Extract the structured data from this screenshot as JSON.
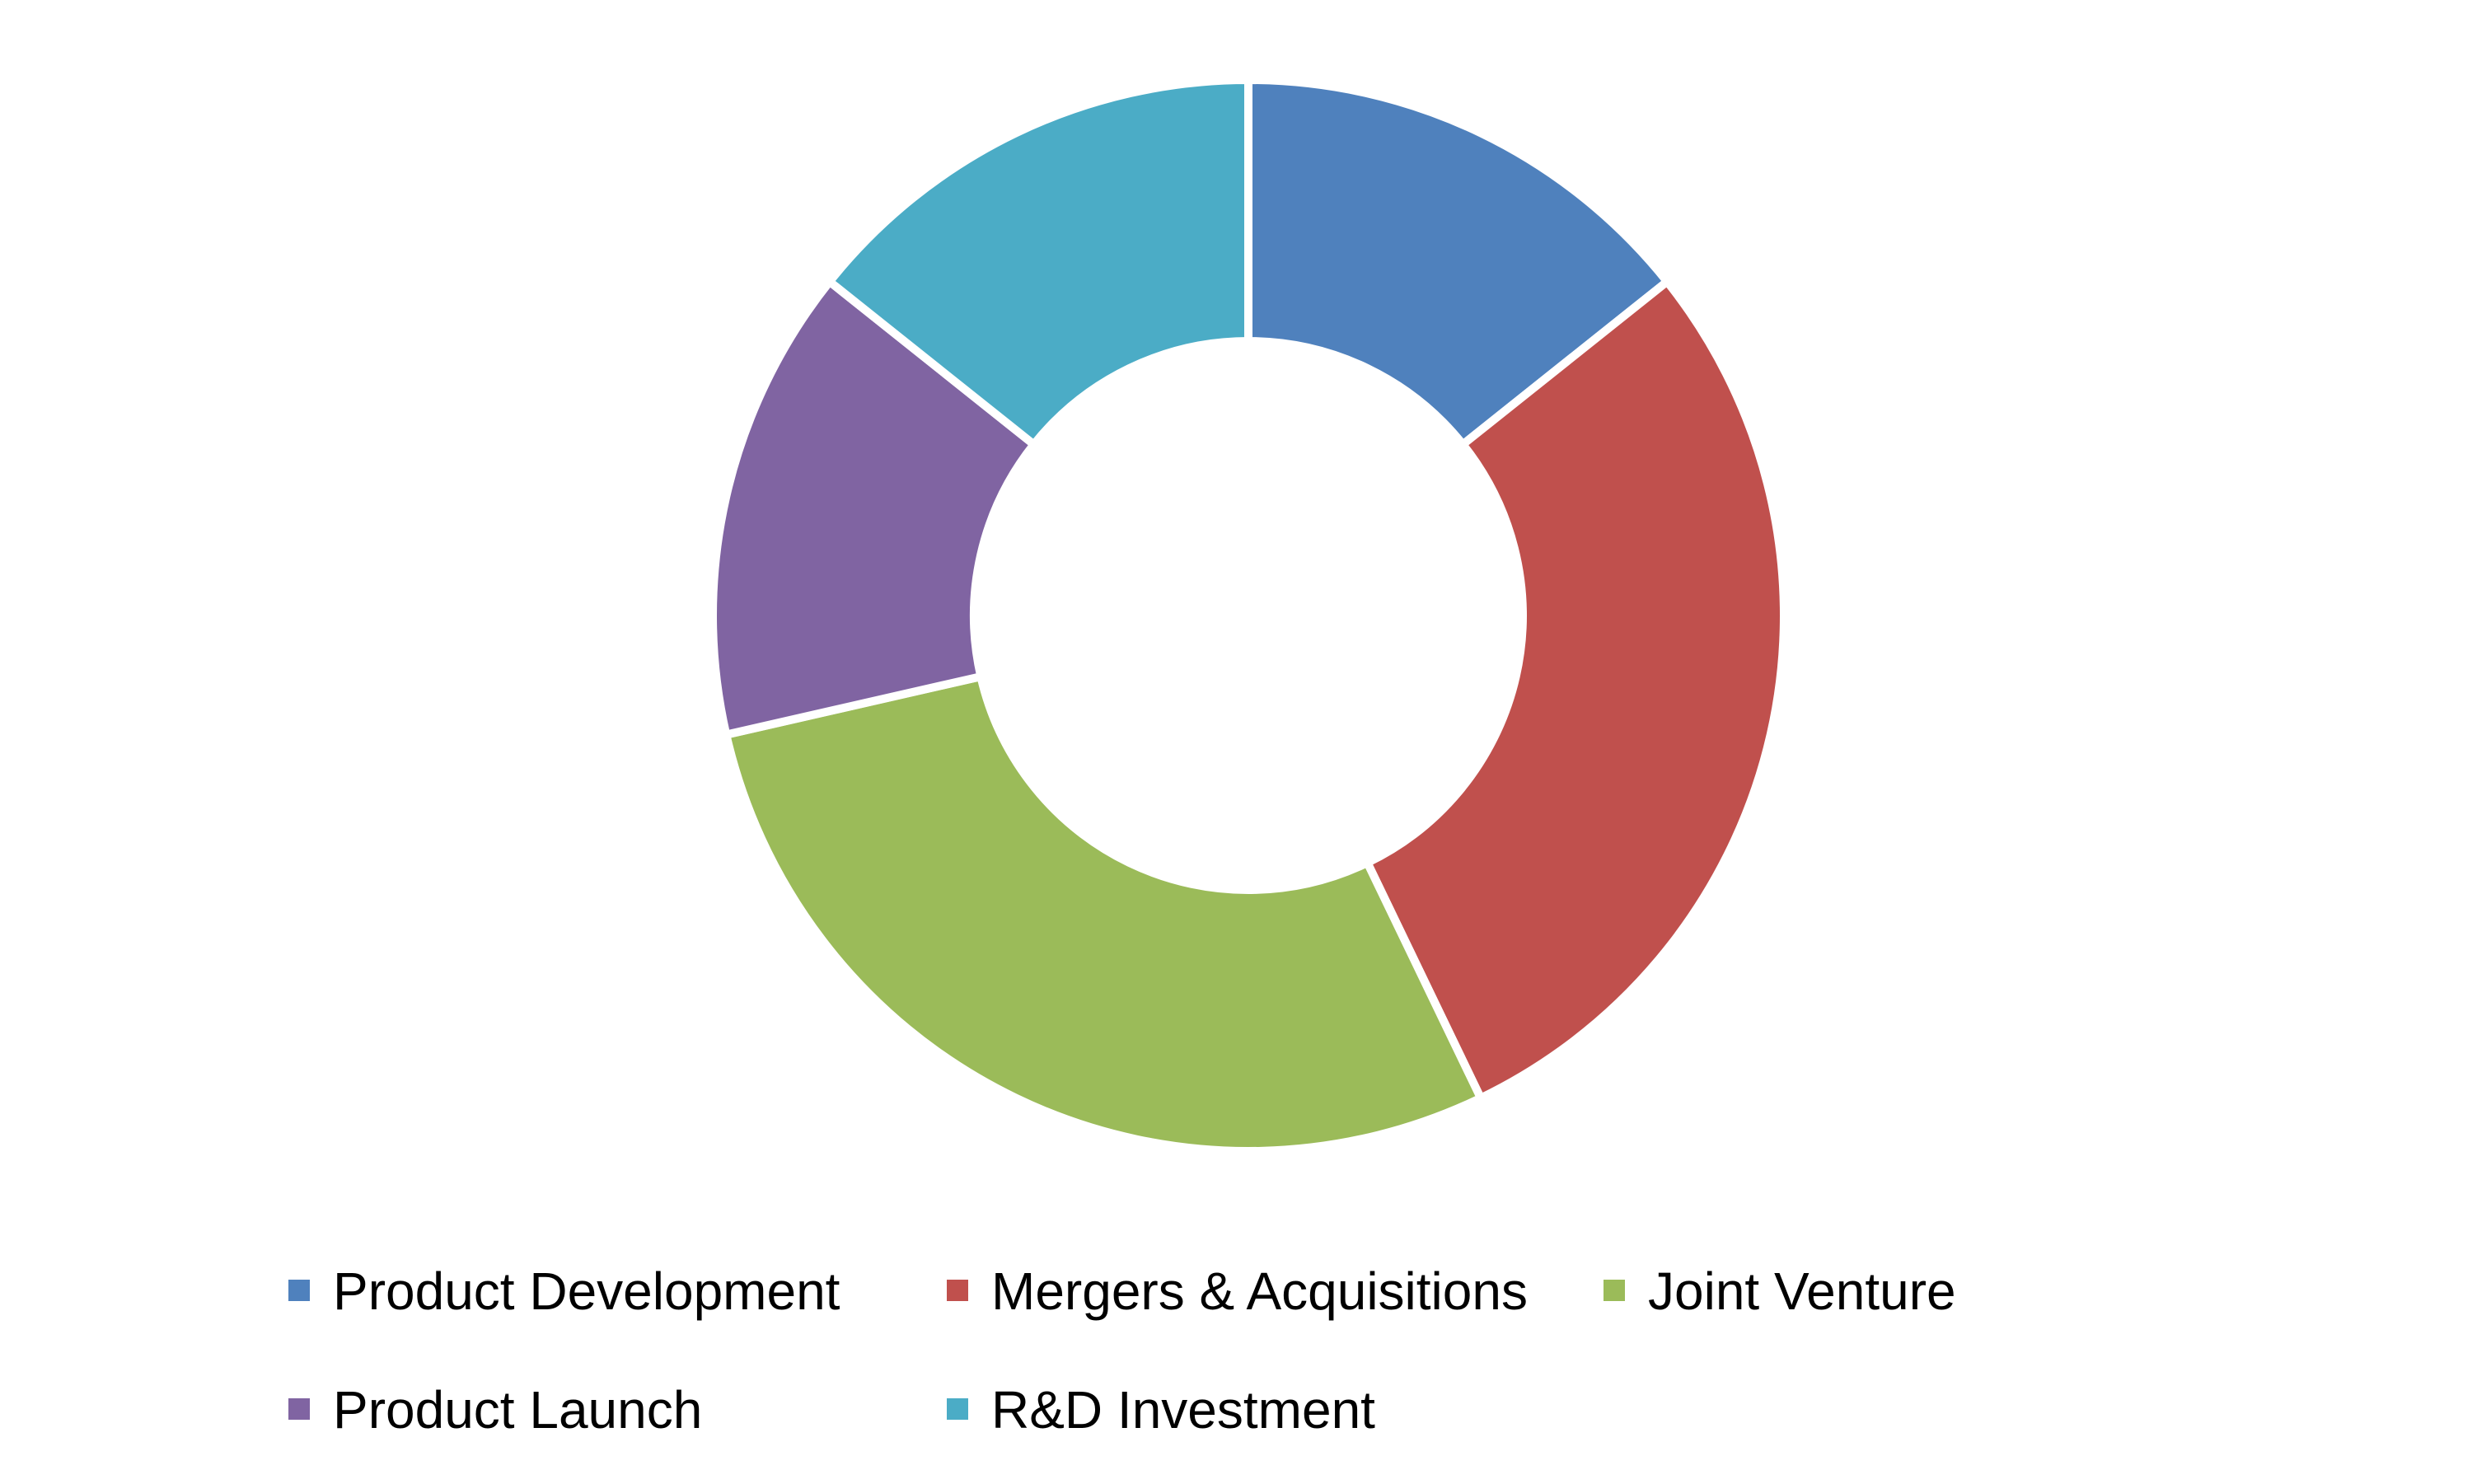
{
  "chart_data": {
    "type": "pie",
    "variant": "donut",
    "title": "",
    "categories": [
      "Product Development",
      "Mergers & Acquisitions",
      "Joint Venture",
      "Product Launch",
      "R&D Investment"
    ],
    "values": [
      14.3,
      28.6,
      28.6,
      14.3,
      14.3
    ],
    "unit": "percent share (estimated)",
    "colors": [
      "#4F81BD",
      "#C0504D",
      "#9BBB59",
      "#8064A2",
      "#4BACC6"
    ],
    "start_angle": "12 o'clock, clockwise",
    "legend_position": "bottom",
    "data_labels": false
  }
}
